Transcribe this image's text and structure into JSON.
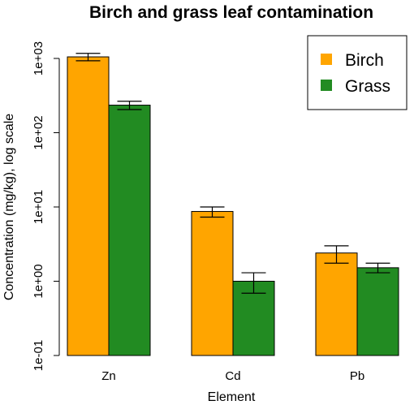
{
  "colors": {
    "birch": "#FFA500",
    "grass": "#228B22"
  },
  "chart_data": {
    "type": "bar",
    "title": "Birch and grass leaf contamination",
    "xlabel": "Element",
    "ylabel": "Concentration (mg/kg), log scale",
    "y_scale": "log10",
    "ylim": [
      0.1,
      1000
    ],
    "yticks": [
      0.1,
      1,
      10,
      100,
      1000
    ],
    "ytick_labels": [
      "1e-01",
      "1e+00",
      "1e+01",
      "1e+02",
      "1e+03"
    ],
    "categories": [
      "Zn",
      "Cd",
      "Pb"
    ],
    "legend_position": "top-right",
    "grid": false,
    "series": [
      {
        "name": "Birch",
        "color": "#FFA500",
        "values": [
          1050,
          8.7,
          2.4
        ],
        "err_low": [
          930,
          7.3,
          1.75
        ],
        "err_high": [
          1170,
          10.0,
          3.0
        ]
      },
      {
        "name": "Grass",
        "color": "#228B22",
        "values": [
          235,
          1.0,
          1.52
        ],
        "err_low": [
          205,
          0.69,
          1.3
        ],
        "err_high": [
          265,
          1.3,
          1.75
        ]
      }
    ]
  }
}
